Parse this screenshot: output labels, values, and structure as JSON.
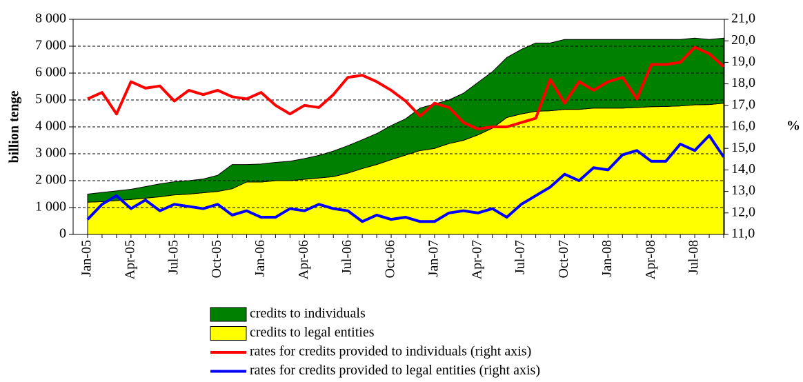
{
  "chart_data": {
    "type": "area",
    "y_label": "billion tenge",
    "y2_label": "%",
    "categories": [
      "Jan-05",
      null,
      null,
      "Apr-05",
      null,
      null,
      "Jul-05",
      null,
      null,
      "Oct-05",
      null,
      null,
      "Jan-06",
      null,
      null,
      "Apr-06",
      null,
      null,
      "Jul-06",
      null,
      null,
      "Oct-06",
      null,
      null,
      "Jan-07",
      null,
      null,
      "Apr-07",
      null,
      null,
      "Jul-07",
      null,
      null,
      "Oct-07",
      null,
      null,
      "Jan-08",
      null,
      null,
      "Apr-08",
      null,
      null,
      "Jul-08",
      null,
      null
    ],
    "series": [
      {
        "name": "credits to legal entities",
        "type": "area",
        "color": "#ffff00",
        "values": [
          1200,
          1220,
          1260,
          1300,
          1350,
          1400,
          1470,
          1500,
          1550,
          1600,
          1700,
          1950,
          1950,
          2000,
          2000,
          2050,
          2100,
          2150,
          2280,
          2450,
          2600,
          2780,
          2950,
          3120,
          3200,
          3380,
          3500,
          3700,
          3950,
          4350,
          4480,
          4580,
          4600,
          4650,
          4650,
          4700,
          4700,
          4700,
          4720,
          4750,
          4760,
          4780,
          4820,
          4830,
          4880
        ]
      },
      {
        "name": "credits to individuals",
        "type": "area",
        "color": "#008000",
        "values": [
          300,
          340,
          360,
          380,
          430,
          480,
          490,
          500,
          510,
          600,
          900,
          650,
          670,
          680,
          720,
          770,
          840,
          950,
          1020,
          1070,
          1150,
          1270,
          1350,
          1580,
          1650,
          1620,
          1750,
          1950,
          2100,
          2230,
          2400,
          2540,
          2520,
          2600,
          2600,
          2550,
          2550,
          2550,
          2530,
          2500,
          2490,
          2470,
          2480,
          2420,
          2420
        ]
      },
      {
        "name": "rates for credits provided to individuals (right axis)",
        "type": "line",
        "axis": "y2",
        "color": "#ff0000",
        "values": [
          17.3,
          17.6,
          16.6,
          18.1,
          17.8,
          17.9,
          17.2,
          17.7,
          17.5,
          17.7,
          17.4,
          17.3,
          17.6,
          17.0,
          16.6,
          17.0,
          16.9,
          17.5,
          18.3,
          18.4,
          18.1,
          17.7,
          17.2,
          16.5,
          17.1,
          16.9,
          16.2,
          15.9,
          16.0,
          16.0,
          16.2,
          16.4,
          18.2,
          17.1,
          18.1,
          17.7,
          18.1,
          18.3,
          17.3,
          18.9,
          18.9,
          19.0,
          19.7,
          19.4,
          18.8
        ]
      },
      {
        "name": "rates for credits provided to legal entities (right axis)",
        "type": "line",
        "axis": "y2",
        "color": "#0000ff",
        "values": [
          11.7,
          12.4,
          12.8,
          12.2,
          12.6,
          12.1,
          12.4,
          12.3,
          12.2,
          12.4,
          11.9,
          12.1,
          11.8,
          11.8,
          12.2,
          12.1,
          12.4,
          12.2,
          12.1,
          11.6,
          11.9,
          11.7,
          11.8,
          11.6,
          11.6,
          12.0,
          12.1,
          12.0,
          12.2,
          11.8,
          12.4,
          12.8,
          13.2,
          13.8,
          13.5,
          14.1,
          14.0,
          14.7,
          14.9,
          14.4,
          14.4,
          15.2,
          14.9,
          15.6,
          14.6
        ]
      }
    ],
    "legend_order": [
      1,
      0,
      2,
      3
    ],
    "ylim": [
      0,
      8000
    ],
    "yticks": [
      0,
      {
        "value": 1000,
        "label": "1 000"
      },
      {
        "value": 2000,
        "label": "2 000"
      },
      {
        "value": 3000,
        "label": "3 000"
      },
      {
        "value": 4000,
        "label": "4 000"
      },
      {
        "value": 5000,
        "label": "5 000"
      },
      {
        "value": 6000,
        "label": "6 000"
      },
      {
        "value": 7000,
        "label": "7 000"
      },
      {
        "value": 8000,
        "label": "8 000"
      }
    ],
    "y2lim": [
      11,
      21
    ],
    "y2ticks": [
      {
        "value": 11,
        "label": "11,0"
      },
      {
        "value": 12,
        "label": "12,0"
      },
      {
        "value": 13,
        "label": "13,0"
      },
      {
        "value": 14,
        "label": "14,0"
      },
      {
        "value": 15,
        "label": "15,0"
      },
      {
        "value": 16,
        "label": "16,0"
      },
      {
        "value": 17,
        "label": "17,0"
      },
      {
        "value": 18,
        "label": "18,0"
      },
      {
        "value": 19,
        "label": "19,0"
      },
      {
        "value": 20,
        "label": "20,0"
      },
      {
        "value": 21,
        "label": "21,0"
      }
    ],
    "grid": true
  }
}
